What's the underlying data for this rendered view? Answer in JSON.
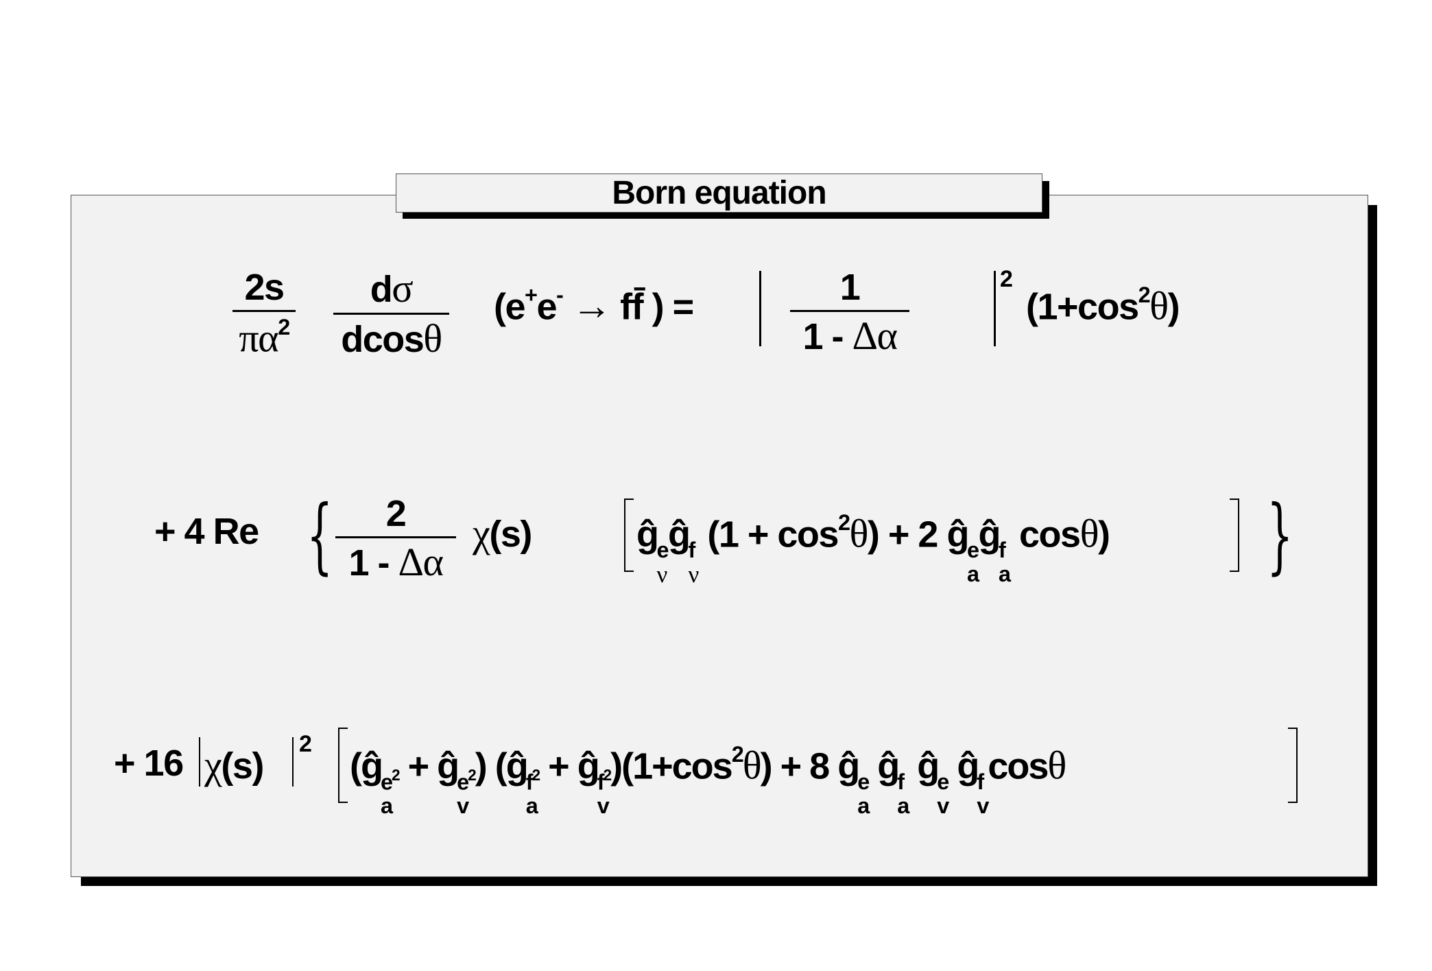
{
  "title": "Born equation",
  "row1": {
    "frac1": {
      "num": "2s",
      "den_greek": "πα",
      "den_sup": "2"
    },
    "frac2": {
      "num_d": "d",
      "num_greek": "σ",
      "den_text": "dcos",
      "den_greek": "θ"
    },
    "process": {
      "open": "(e",
      "sup_plus": "+",
      "e": "e",
      "sup_minus": "-",
      "arrow": "→",
      "ff": "ff̄",
      "close": " ) ="
    },
    "frac3": {
      "num": "1",
      "den_text": "1 - ",
      "den_greek": "Δα"
    },
    "abs_sup": "2",
    "tail": {
      "open": "(1+cos",
      "sup": "2",
      "greek": "θ",
      "close": ")"
    }
  },
  "row2": {
    "lead": "+ 4 Re",
    "frac": {
      "num": "2",
      "den_text": "1 - ",
      "den_greek": "Δα"
    },
    "chi": "χ",
    "chi_arg": "(s)",
    "g": "ĝ",
    "t1": {
      "sup": "e",
      "sub": "ν"
    },
    "t2": {
      "sup": "f",
      "sub": "ν"
    },
    "mid": " (1 + cos",
    "mid_sup": "2",
    "theta": "θ",
    "mid2": ") + 2  ",
    "t3": {
      "sup": "e",
      "sub": "a"
    },
    "t4": {
      "sup": "f",
      "sub": "a"
    },
    "end": " cos",
    "end_close": ")"
  },
  "row3": {
    "lead": "+ 16",
    "chi": "χ",
    "chi_arg": "(s)",
    "abs_sup": "2",
    "g": "ĝ",
    "open": "(",
    "a1": {
      "sup": "e",
      "sup2": "2",
      "sub": "a"
    },
    "plus": " +  ",
    "v1": {
      "sup": "e",
      "sup2": "2",
      "sub": "v"
    },
    "mid": ") (",
    "a2": {
      "sup": "f",
      "sup2": "2",
      "sub": "a"
    },
    "v2": {
      "sup": "f",
      "sup2": "2",
      "sub": "v"
    },
    "cos_part": ")(1+cos",
    "cos_sup": "2",
    "theta": "θ",
    "eight": ") + 8  ",
    "a3": {
      "sup": "e",
      "sub": "a"
    },
    "a4": {
      "sup": "f",
      "sub": "a"
    },
    "v3": {
      "sup": "e",
      "sub": "v"
    },
    "v4": {
      "sup": "f",
      "sub": "v"
    },
    "end": "cos"
  }
}
